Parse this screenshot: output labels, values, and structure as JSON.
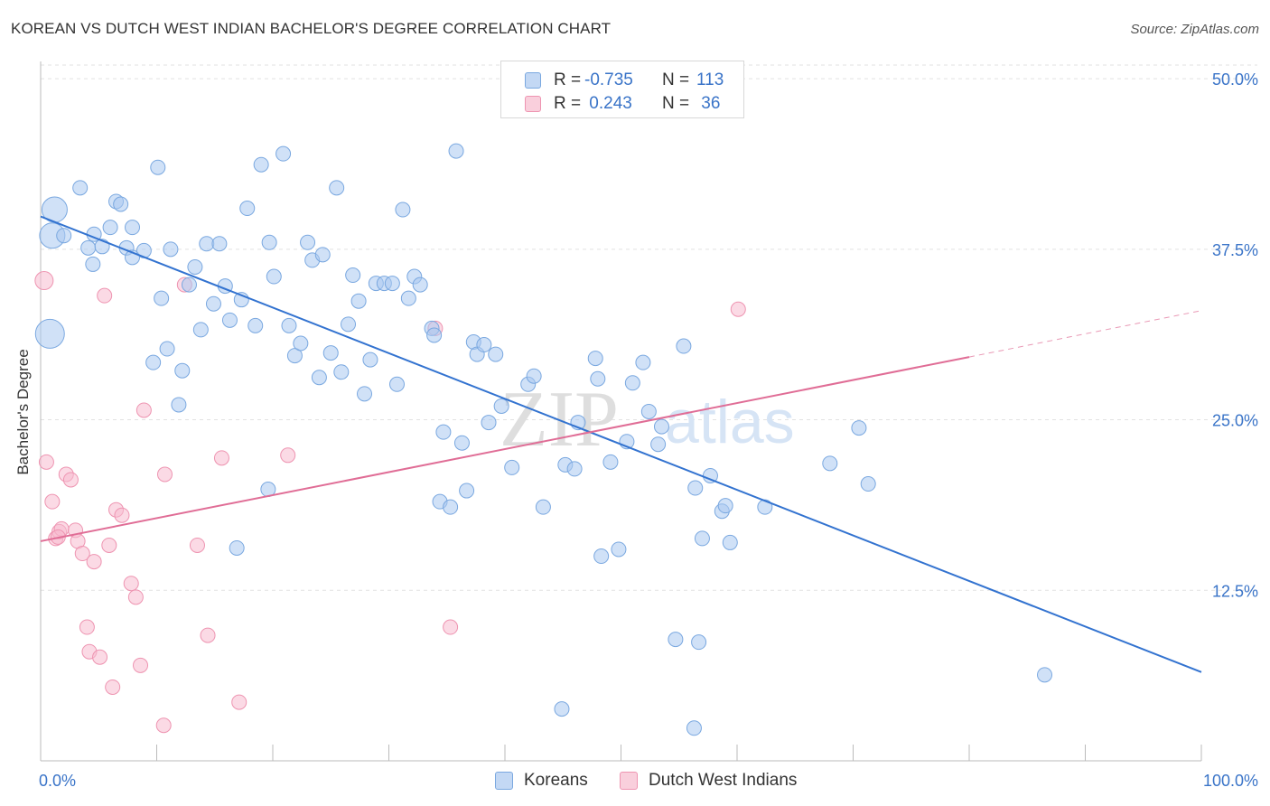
{
  "header": {
    "title": "KOREAN VS DUTCH WEST INDIAN BACHELOR'S DEGREE CORRELATION CHART",
    "source": "Source: ZipAtlas.com"
  },
  "watermark": {
    "zip": "ZIP",
    "atlas": "atlas"
  },
  "legend": {
    "rows": [
      {
        "r_label": "R = ",
        "r_value": "-0.735",
        "n_label": "N = ",
        "n_value": "113"
      },
      {
        "r_label": "R = ",
        "r_value": " 0.243",
        "n_label": "N = ",
        "n_value": " 36"
      }
    ]
  },
  "bottom_legend": {
    "koreans": "Koreans",
    "dutch": "Dutch West Indians"
  },
  "chart_data": {
    "type": "scatter",
    "title": "KOREAN VS DUTCH WEST INDIAN BACHELOR'S DEGREE CORRELATION CHART",
    "ylabel": "Bachelor's Degree",
    "xlabel": "",
    "xlim": [
      0,
      100
    ],
    "ylim": [
      0,
      51
    ],
    "x_tick_labels": [
      "0.0%",
      "100.0%"
    ],
    "y_ticks": [
      12.5,
      25.0,
      37.5,
      50.0
    ],
    "y_tick_labels": [
      "12.5%",
      "25.0%",
      "37.5%",
      "50.0%"
    ],
    "grid": true,
    "legend_position": "top-center",
    "colors": {
      "koreans_fill": "#a9c8f0",
      "koreans_stroke": "#7aa8e0",
      "koreans_line": "#3373d0",
      "dutch_fill": "#f7bccf",
      "dutch_stroke": "#ee94b1",
      "dutch_line": "#e06d96",
      "axis_label": "#3a74c8"
    },
    "series": [
      {
        "name": "Koreans",
        "trend": {
          "x": [
            0,
            100
          ],
          "y": [
            39.9,
            6.5
          ]
        },
        "points": [
          [
            1.2,
            40.4,
            14
          ],
          [
            1.0,
            38.5,
            14
          ],
          [
            0.8,
            31.3,
            16
          ],
          [
            2.0,
            38.5,
            8
          ],
          [
            3.4,
            42.0,
            8
          ],
          [
            4.6,
            38.6,
            8
          ],
          [
            4.5,
            36.4,
            8
          ],
          [
            4.1,
            37.6,
            8
          ],
          [
            5.3,
            37.7,
            8
          ],
          [
            6.0,
            39.1,
            8
          ],
          [
            6.5,
            41.0,
            8
          ],
          [
            6.9,
            40.8,
            8
          ],
          [
            7.4,
            37.6,
            8
          ],
          [
            7.9,
            36.9,
            8
          ],
          [
            7.9,
            39.1,
            8
          ],
          [
            8.9,
            37.4,
            8
          ],
          [
            9.7,
            29.2,
            8
          ],
          [
            10.1,
            43.5,
            8
          ],
          [
            10.4,
            33.9,
            8
          ],
          [
            10.9,
            30.2,
            8
          ],
          [
            11.2,
            37.5,
            8
          ],
          [
            11.9,
            26.1,
            8
          ],
          [
            12.2,
            28.6,
            8
          ],
          [
            12.8,
            34.9,
            8
          ],
          [
            13.3,
            36.2,
            8
          ],
          [
            13.8,
            31.6,
            8
          ],
          [
            14.3,
            37.9,
            8
          ],
          [
            14.9,
            33.5,
            8
          ],
          [
            15.4,
            37.9,
            8
          ],
          [
            15.9,
            34.8,
            8
          ],
          [
            16.3,
            32.3,
            8
          ],
          [
            16.9,
            15.6,
            8
          ],
          [
            17.3,
            33.8,
            8
          ],
          [
            17.8,
            40.5,
            8
          ],
          [
            18.5,
            31.9,
            8
          ],
          [
            19.0,
            43.7,
            8
          ],
          [
            19.6,
            19.9,
            8
          ],
          [
            19.7,
            38.0,
            8
          ],
          [
            20.1,
            35.5,
            8
          ],
          [
            20.9,
            44.5,
            8
          ],
          [
            21.4,
            31.9,
            8
          ],
          [
            21.9,
            29.7,
            8
          ],
          [
            22.4,
            30.6,
            8
          ],
          [
            23.0,
            38.0,
            8
          ],
          [
            23.4,
            36.7,
            8
          ],
          [
            24.0,
            28.1,
            8
          ],
          [
            24.3,
            37.1,
            8
          ],
          [
            25.0,
            29.9,
            8
          ],
          [
            25.5,
            42.0,
            8
          ],
          [
            25.9,
            28.5,
            8
          ],
          [
            26.5,
            32.0,
            8
          ],
          [
            26.9,
            35.6,
            8
          ],
          [
            27.4,
            33.7,
            8
          ],
          [
            27.9,
            26.9,
            8
          ],
          [
            28.4,
            29.4,
            8
          ],
          [
            28.9,
            35.0,
            8
          ],
          [
            29.6,
            35.0,
            8
          ],
          [
            30.3,
            35.0,
            8
          ],
          [
            30.7,
            27.6,
            8
          ],
          [
            31.2,
            40.4,
            8
          ],
          [
            31.7,
            33.9,
            8
          ],
          [
            32.2,
            35.5,
            8
          ],
          [
            32.7,
            34.9,
            8
          ],
          [
            33.7,
            31.7,
            8
          ],
          [
            33.9,
            31.2,
            8
          ],
          [
            34.4,
            19.0,
            8
          ],
          [
            34.7,
            24.1,
            8
          ],
          [
            35.3,
            18.6,
            8
          ],
          [
            35.8,
            44.7,
            8
          ],
          [
            36.3,
            23.3,
            8
          ],
          [
            36.7,
            19.8,
            8
          ],
          [
            37.3,
            30.7,
            8
          ],
          [
            37.6,
            29.8,
            8
          ],
          [
            38.2,
            30.5,
            8
          ],
          [
            38.6,
            24.8,
            8
          ],
          [
            39.2,
            29.8,
            8
          ],
          [
            39.7,
            26.0,
            8
          ],
          [
            40.6,
            21.5,
            8
          ],
          [
            42.0,
            27.6,
            8
          ],
          [
            42.5,
            28.2,
            8
          ],
          [
            43.3,
            18.6,
            8
          ],
          [
            45.2,
            21.7,
            8
          ],
          [
            46.0,
            21.4,
            8
          ],
          [
            46.3,
            24.8,
            8
          ],
          [
            47.8,
            29.5,
            8
          ],
          [
            48.0,
            28.0,
            8
          ],
          [
            48.3,
            15.0,
            8
          ],
          [
            49.1,
            21.9,
            8
          ],
          [
            49.8,
            15.5,
            8
          ],
          [
            50.5,
            23.4,
            8
          ],
          [
            51.0,
            27.7,
            8
          ],
          [
            51.9,
            29.2,
            8
          ],
          [
            52.4,
            25.6,
            8
          ],
          [
            53.2,
            23.2,
            8
          ],
          [
            53.5,
            24.5,
            8
          ],
          [
            54.7,
            8.9,
            8
          ],
          [
            55.4,
            30.4,
            8
          ],
          [
            56.4,
            20.0,
            8
          ],
          [
            56.7,
            8.7,
            8
          ],
          [
            57.0,
            16.3,
            8
          ],
          [
            57.7,
            20.9,
            8
          ],
          [
            58.7,
            18.3,
            8
          ],
          [
            59.0,
            18.7,
            8
          ],
          [
            59.4,
            16.0,
            8
          ],
          [
            62.4,
            18.6,
            8
          ],
          [
            68.0,
            21.8,
            8
          ],
          [
            70.5,
            24.4,
            8
          ],
          [
            71.3,
            20.3,
            8
          ],
          [
            86.5,
            6.3,
            8
          ],
          [
            44.9,
            3.8,
            8
          ],
          [
            56.3,
            2.4,
            8
          ]
        ]
      },
      {
        "name": "Dutch West Indians",
        "trend": {
          "x": [
            0,
            80
          ],
          "y": [
            16.1,
            29.6
          ],
          "dashed_to": {
            "x": 100,
            "y": 33.0
          }
        },
        "points": [
          [
            0.3,
            35.2,
            10
          ],
          [
            0.5,
            21.9,
            8
          ],
          [
            1.0,
            19.0,
            8
          ],
          [
            1.3,
            16.3,
            8
          ],
          [
            1.6,
            16.8,
            8
          ],
          [
            1.8,
            17.0,
            8
          ],
          [
            2.2,
            21.0,
            8
          ],
          [
            2.6,
            20.6,
            8
          ],
          [
            3.0,
            16.9,
            8
          ],
          [
            3.2,
            16.1,
            8
          ],
          [
            3.6,
            15.2,
            8
          ],
          [
            4.0,
            9.8,
            8
          ],
          [
            4.2,
            8.0,
            8
          ],
          [
            4.6,
            14.6,
            8
          ],
          [
            5.1,
            7.6,
            8
          ],
          [
            5.5,
            34.1,
            8
          ],
          [
            5.9,
            15.8,
            8
          ],
          [
            6.2,
            5.4,
            8
          ],
          [
            6.5,
            18.4,
            8
          ],
          [
            7.0,
            18.0,
            8
          ],
          [
            7.8,
            13.0,
            8
          ],
          [
            8.2,
            12.0,
            8
          ],
          [
            8.6,
            7.0,
            8
          ],
          [
            8.9,
            25.7,
            8
          ],
          [
            10.6,
            2.6,
            8
          ],
          [
            10.7,
            21.0,
            8
          ],
          [
            12.4,
            34.9,
            8
          ],
          [
            13.5,
            15.8,
            8
          ],
          [
            14.4,
            9.2,
            8
          ],
          [
            15.6,
            22.2,
            8
          ],
          [
            17.1,
            4.3,
            8
          ],
          [
            21.3,
            22.4,
            8
          ],
          [
            34.0,
            31.7,
            8
          ],
          [
            35.3,
            9.8,
            8
          ],
          [
            60.1,
            33.1,
            8
          ],
          [
            1.5,
            16.4,
            8
          ]
        ]
      }
    ]
  }
}
